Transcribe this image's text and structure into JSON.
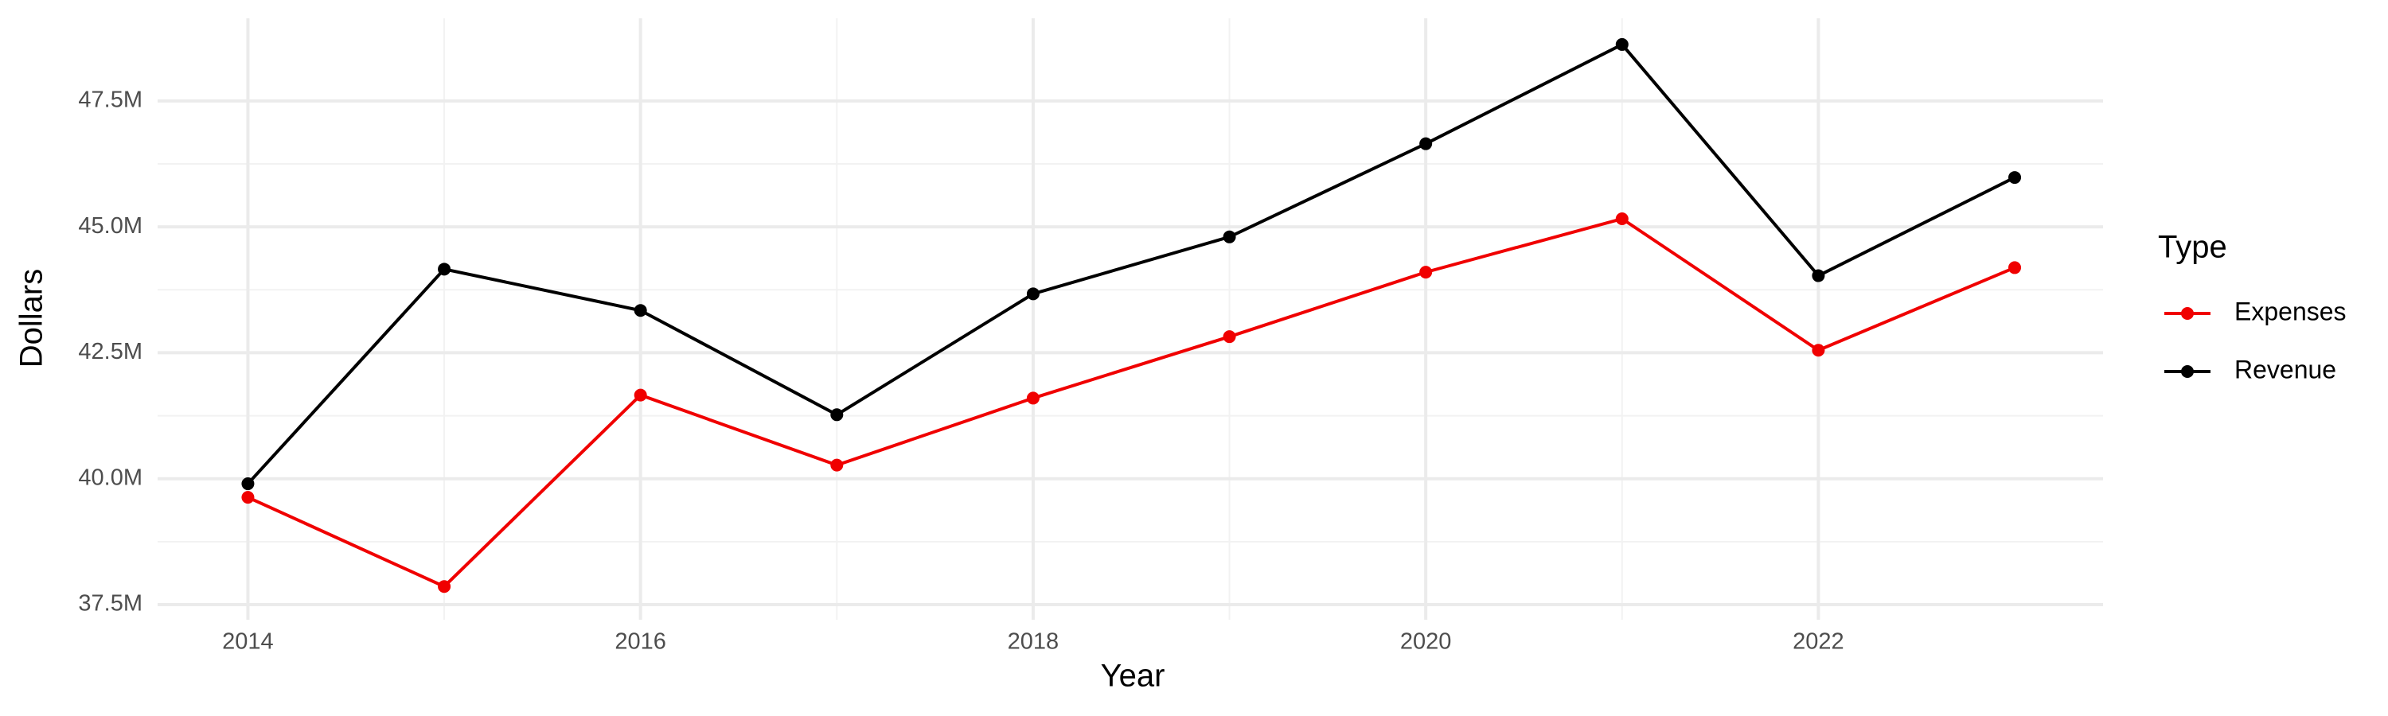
{
  "chart_data": {
    "type": "line",
    "x_label": "Year",
    "y_label": "Dollars",
    "legend_title": "Type",
    "legend_position": "right",
    "grid": true,
    "x": [
      2014,
      2015,
      2016,
      2017,
      2018,
      2019,
      2020,
      2021,
      2022,
      2023
    ],
    "series": [
      {
        "name": "Expenses",
        "color": "#f00000",
        "values": [
          39630000,
          37860000,
          41660000,
          40270000,
          41600000,
          42820000,
          44100000,
          45160000,
          42550000,
          44190000
        ]
      },
      {
        "name": "Revenue",
        "color": "#000000",
        "values": [
          39900000,
          44160000,
          43340000,
          41270000,
          43670000,
          44800000,
          46650000,
          48620000,
          44030000,
          45980000
        ]
      }
    ],
    "xlim": [
      2013.54,
      2023.45
    ],
    "xticks": [
      2014,
      2016,
      2018,
      2020,
      2022
    ],
    "ylim": [
      37200000,
      49140000
    ],
    "yticks": [
      {
        "value": 37500000,
        "label": "37.5M"
      },
      {
        "value": 40000000,
        "label": "40.0M"
      },
      {
        "value": 42500000,
        "label": "42.5M"
      },
      {
        "value": 45000000,
        "label": "45.0M"
      },
      {
        "value": 47500000,
        "label": "47.5M"
      }
    ]
  }
}
